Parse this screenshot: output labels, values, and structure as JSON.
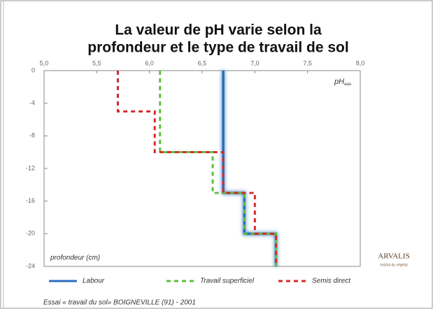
{
  "chart_data": {
    "type": "line",
    "title": [
      "La valeur de pH  varie selon la",
      "profondeur et le type de travail de sol"
    ],
    "x_label": "pH",
    "x_label_sub": "eau",
    "y_label": "profondeur (cm)",
    "xlim": [
      5.0,
      8.0
    ],
    "xticks": [
      {
        "value": 5.0,
        "label": "5,0"
      },
      {
        "value": 5.5,
        "label": "5,5"
      },
      {
        "value": 6.0,
        "label": "6,0"
      },
      {
        "value": 6.5,
        "label": "6,5"
      },
      {
        "value": 7.0,
        "label": "7,0"
      },
      {
        "value": 7.5,
        "label": "7,5"
      },
      {
        "value": 8.0,
        "label": "8,0"
      }
    ],
    "ylim": [
      -24,
      0
    ],
    "yticks": [
      0,
      -4,
      -8,
      -12,
      -16,
      -20,
      -24
    ],
    "grid": false,
    "legend": "bottom",
    "series": [
      {
        "name": "Labour",
        "color": "#2a6ebb",
        "dashed": false,
        "x": [
          6.7,
          6.7,
          6.9,
          6.9,
          7.2,
          7.2
        ],
        "values": [
          0,
          -15,
          -15,
          -20,
          -20,
          -24
        ]
      },
      {
        "name": "Travail superficiel",
        "color": "#5cc23c",
        "dashed": true,
        "x": [
          6.1,
          6.1,
          6.6,
          6.6,
          6.9,
          6.9,
          7.2,
          7.2
        ],
        "values": [
          0,
          -10,
          -10,
          -15,
          -15,
          -20,
          -20,
          -24
        ]
      },
      {
        "name": "Semis direct",
        "color": "#d62a2a",
        "dashed": true,
        "x": [
          5.7,
          5.7,
          6.05,
          6.05,
          6.7,
          6.7,
          7.0,
          7.0,
          7.2,
          7.2
        ],
        "values": [
          0,
          -5,
          -5,
          -10,
          -10,
          -15,
          -15,
          -20,
          -20,
          -24
        ]
      }
    ],
    "logo": {
      "name": "ARVALIS",
      "tagline": "Institut du végétal"
    },
    "source": "Essai « travail du sol» BOIGNEVILLE (91) - 2001"
  }
}
